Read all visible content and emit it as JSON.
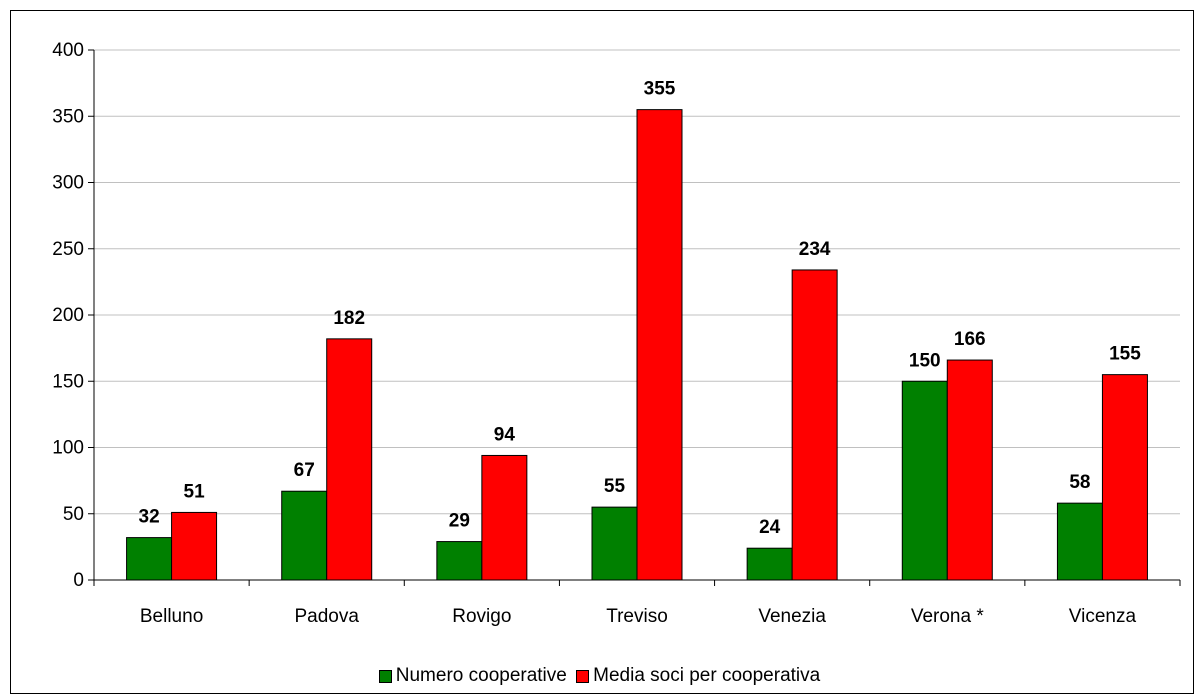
{
  "caption": {
    "text": ""
  },
  "chart_data": {
    "type": "bar",
    "categories": [
      "Belluno",
      "Padova",
      "Rovigo",
      "Treviso",
      "Venezia",
      "Verona *",
      "Vicenza"
    ],
    "series": [
      {
        "name": "Numero cooperative",
        "values": [
          32,
          67,
          29,
          55,
          24,
          150,
          58
        ],
        "color": "#008000"
      },
      {
        "name": "Media soci per cooperativa",
        "values": [
          51,
          182,
          94,
          355,
          234,
          166,
          155
        ],
        "color": "#ff0000"
      }
    ],
    "ylim": [
      0,
      400
    ],
    "yticks": [
      0,
      50,
      100,
      150,
      200,
      250,
      300,
      350,
      400
    ],
    "grid": true,
    "legend_position": "bottom",
    "data_labels": true,
    "title": "",
    "xlabel": "",
    "ylabel": ""
  }
}
